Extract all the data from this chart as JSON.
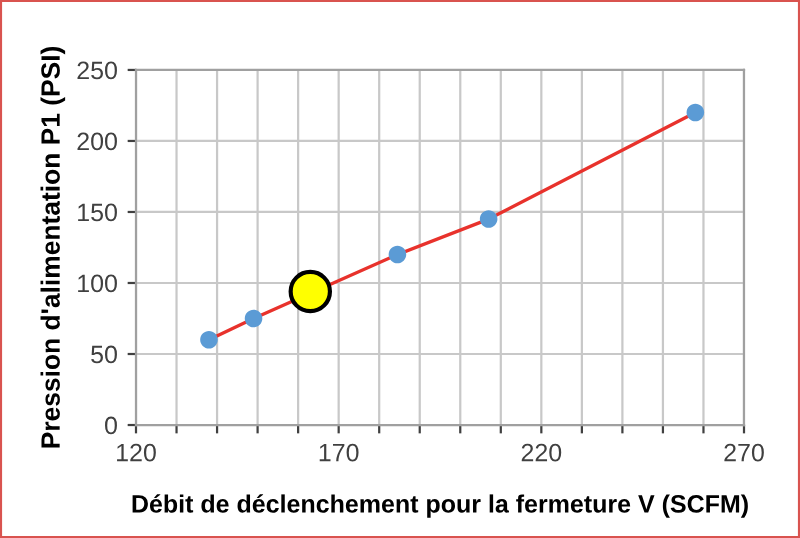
{
  "chart_data": {
    "type": "scatter",
    "xlabel": "Débit de déclenchement pour la fermeture V (SCFM)",
    "ylabel": "Pression d'alimentation P1 (PSI)",
    "series": [
      {
        "type": "line",
        "color": "#e8322c",
        "x": [
          138,
          149,
          184.5,
          207,
          258
        ],
        "values": [
          60,
          75,
          120,
          145,
          220
        ],
        "marker": "none"
      },
      {
        "color": "#5b9bd5",
        "x": [
          138,
          149,
          184.5,
          207,
          258
        ],
        "values": [
          60,
          75,
          120,
          145,
          220
        ],
        "marker": "circle"
      },
      {
        "color": "#ffff00",
        "x": [
          163
        ],
        "values": [
          94
        ],
        "marker": "circle"
      }
    ],
    "xlim": [
      120,
      270
    ],
    "ylim": [
      0,
      250
    ],
    "xticks": [
      120,
      {
        "value": 130,
        "label": null
      },
      {
        "value": 140,
        "label": null
      },
      {
        "value": 150,
        "label": null
      },
      {
        "value": 160,
        "label": null
      },
      170,
      {
        "value": 180,
        "label": null
      },
      {
        "value": 190,
        "label": null
      },
      {
        "value": 200,
        "label": null
      },
      {
        "value": 210,
        "label": null
      },
      220,
      {
        "value": 230,
        "label": null
      },
      {
        "value": 240,
        "label": null
      },
      {
        "value": 250,
        "label": null
      },
      {
        "value": 260,
        "label": null
      },
      270
    ],
    "yticks": [
      0,
      50,
      100,
      150,
      200,
      250
    ],
    "grid": true,
    "legend": false
  }
}
